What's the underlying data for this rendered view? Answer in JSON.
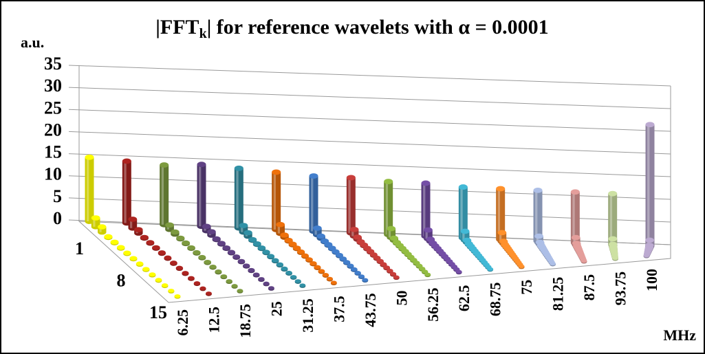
{
  "chart_data": {
    "type": "bar3d",
    "title": [
      "|FFT",
      "k",
      "| for reference wavelets with α = 0.0001"
    ],
    "y_label": "a.u.",
    "x_label": "MHz",
    "categories": [
      "6.25",
      "12.5",
      "18.75",
      "25",
      "31.25",
      "37.5",
      "43.75",
      "50",
      "56.25",
      "62.5",
      "68.75",
      "75",
      "81.25",
      "87.5",
      "93.75",
      "100"
    ],
    "category_colors": [
      "#ffff00",
      "#a5221e",
      "#77933c",
      "#5b3f7e",
      "#2f8a9e",
      "#e46c0a",
      "#3f78c2",
      "#be3b38",
      "#8cb43f",
      "#6e4a9e",
      "#3fb0cc",
      "#f58a2a",
      "#a5b6dc",
      "#d99694",
      "#c3d69b",
      "#b3a2c7"
    ],
    "series": [
      {
        "name": "1",
        "values": [
          14.5,
          14,
          13.5,
          14,
          13.5,
          13,
          12.5,
          12.5,
          12,
          12,
          11.5,
          11.5,
          11.5,
          11.5,
          11.5,
          27.5
        ]
      },
      {
        "name": null,
        "values": [
          2,
          2,
          1,
          1,
          1.5,
          2,
          1.5,
          1.5,
          2,
          2,
          2,
          2,
          1.5,
          1.5,
          1.5,
          1.5
        ]
      },
      {
        "name": null,
        "values": [
          1.2,
          0.8,
          0.5,
          0.8,
          0.8,
          0.5,
          0.5,
          0.5,
          0.5,
          0.5,
          0.5,
          0.5,
          0.5,
          0.5,
          0.5,
          0.5
        ]
      },
      {
        "name": null,
        "values": [
          0.2,
          0.2,
          0.2,
          0.2,
          0.2,
          0.2,
          0.2,
          0.2,
          0.2,
          0.2,
          0.2,
          0.2,
          0.2,
          0.2,
          0.2,
          0.2
        ]
      },
      {
        "name": null,
        "values": [
          0.2,
          0.2,
          0.2,
          0.2,
          0.2,
          0.2,
          0.2,
          0.2,
          0.2,
          0.2,
          0.2,
          0.2,
          0.2,
          0.2,
          0.2,
          0.2
        ]
      },
      {
        "name": null,
        "values": [
          0.2,
          0.2,
          0.2,
          0.2,
          0.2,
          0.2,
          0.2,
          0.2,
          0.2,
          0.2,
          0.2,
          0.2,
          0.2,
          0.2,
          0.2,
          0.2
        ]
      },
      {
        "name": null,
        "values": [
          0.2,
          0.2,
          0.2,
          0.2,
          0.2,
          0.2,
          0.2,
          0.2,
          0.2,
          0.2,
          0.2,
          0.2,
          0.2,
          0.2,
          0.2,
          0.2
        ]
      },
      {
        "name": "8",
        "values": [
          0.2,
          0.2,
          0.2,
          0.2,
          0.2,
          0.2,
          0.2,
          0.2,
          0.2,
          0.2,
          0.2,
          0.2,
          0.2,
          0.2,
          0.2,
          0.2
        ]
      },
      {
        "name": null,
        "values": [
          0.2,
          0.2,
          0.2,
          0.2,
          0.2,
          0.2,
          0.2,
          0.2,
          0.2,
          0.2,
          0.2,
          0.2,
          0.2,
          0.2,
          0.2,
          0.2
        ]
      },
      {
        "name": null,
        "values": [
          0.2,
          0.2,
          0.2,
          0.2,
          0.2,
          0.2,
          0.2,
          0.2,
          0.2,
          0.2,
          0.2,
          0.2,
          0.2,
          0.2,
          0.2,
          0.2
        ]
      },
      {
        "name": null,
        "values": [
          0.2,
          0.2,
          0.2,
          0.2,
          0.2,
          0.2,
          0.2,
          0.2,
          0.2,
          0.2,
          0.2,
          0.2,
          0.2,
          0.2,
          0.2,
          0.2
        ]
      },
      {
        "name": null,
        "values": [
          0.2,
          0.2,
          0.2,
          0.2,
          0.2,
          0.2,
          0.2,
          0.2,
          0.2,
          0.2,
          0.2,
          0.2,
          0.2,
          0.2,
          0.2,
          0.2
        ]
      },
      {
        "name": null,
        "values": [
          0.2,
          0.2,
          0.2,
          0.2,
          0.2,
          0.2,
          0.2,
          0.2,
          0.2,
          0.2,
          0.2,
          0.2,
          0.2,
          0.2,
          0.2,
          0.2
        ]
      },
      {
        "name": null,
        "values": [
          0.2,
          0.2,
          0.2,
          0.2,
          0.2,
          0.2,
          0.2,
          0.2,
          0.2,
          0.2,
          0.2,
          0.2,
          0.2,
          0.2,
          0.2,
          0.2
        ]
      },
      {
        "name": "15",
        "values": [
          0.2,
          0.2,
          0.2,
          0.2,
          0.2,
          0.2,
          0.2,
          0.2,
          0.2,
          0.2,
          0.2,
          0.2,
          0.2,
          0.2,
          0.2,
          0.2
        ]
      }
    ],
    "ylim": [
      0,
      35
    ],
    "yticks": [
      0,
      5,
      10,
      15,
      20,
      25,
      30,
      35
    ],
    "grid": true
  }
}
